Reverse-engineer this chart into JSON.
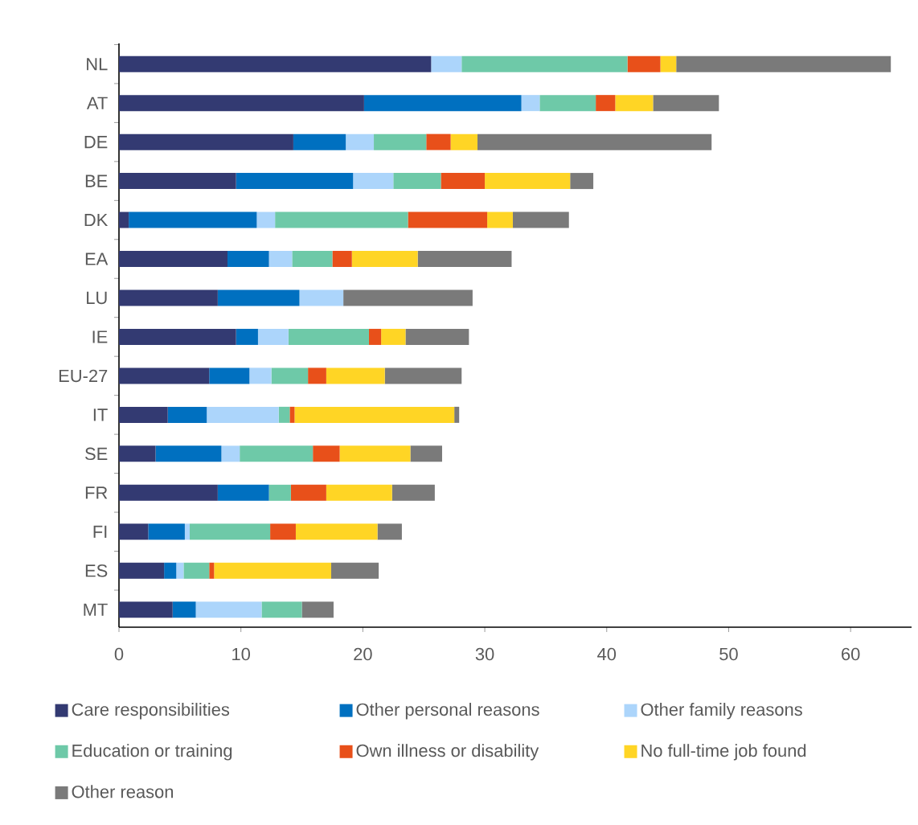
{
  "chart_data": {
    "type": "bar",
    "orientation": "horizontal",
    "stacked": true,
    "legend": "bottom",
    "grid": false,
    "categories": [
      "NL",
      "AT",
      "DE",
      "BE",
      "DK",
      "EA",
      "LU",
      "IE",
      "EU-27",
      "IT",
      "SE",
      "FR",
      "FI",
      "ES",
      "MT"
    ],
    "xlim": [
      0,
      65
    ],
    "xticks": [
      0,
      10,
      20,
      30,
      40,
      50,
      60
    ],
    "series": [
      {
        "name": "Care responsibilities",
        "color": "#333a72",
        "values": [
          25.6,
          20.1,
          14.3,
          9.6,
          0.8,
          8.9,
          8.1,
          9.6,
          7.4,
          4.0,
          3.0,
          8.1,
          2.4,
          3.7,
          4.4
        ]
      },
      {
        "name": "Other personal reasons",
        "color": "#0070c0",
        "values": [
          0,
          12.9,
          4.3,
          9.6,
          10.5,
          3.4,
          6.7,
          1.8,
          3.3,
          3.2,
          5.4,
          4.2,
          3.0,
          1.0,
          1.9
        ]
      },
      {
        "name": "Other family reasons",
        "color": "#acd5fb",
        "values": [
          2.5,
          1.5,
          2.3,
          3.3,
          1.5,
          1.9,
          3.6,
          2.5,
          1.8,
          5.9,
          1.5,
          0,
          0.4,
          0.6,
          5.4
        ]
      },
      {
        "name": "Education or training",
        "color": "#6ec9a8",
        "values": [
          13.6,
          4.6,
          4.3,
          3.9,
          10.9,
          3.3,
          0,
          6.6,
          3.0,
          0.9,
          6.0,
          1.8,
          6.6,
          2.1,
          3.3
        ]
      },
      {
        "name": "Own illness or disability",
        "color": "#e8501a",
        "values": [
          2.7,
          1.6,
          2.0,
          3.6,
          6.5,
          1.6,
          0,
          1.0,
          1.5,
          0.4,
          2.2,
          2.9,
          2.1,
          0.4,
          0
        ]
      },
      {
        "name": "No full-time job found",
        "color": "#ffd525",
        "values": [
          1.3,
          3.1,
          2.2,
          7.0,
          2.1,
          5.4,
          0,
          2.0,
          4.8,
          13.1,
          5.8,
          5.4,
          6.7,
          9.6,
          0
        ]
      },
      {
        "name": "Other reason",
        "color": "#7a7a7a",
        "values": [
          17.6,
          5.4,
          19.2,
          1.9,
          4.6,
          7.7,
          10.6,
          5.2,
          6.3,
          0.4,
          2.6,
          3.5,
          2.0,
          3.9,
          2.6
        ]
      }
    ]
  }
}
